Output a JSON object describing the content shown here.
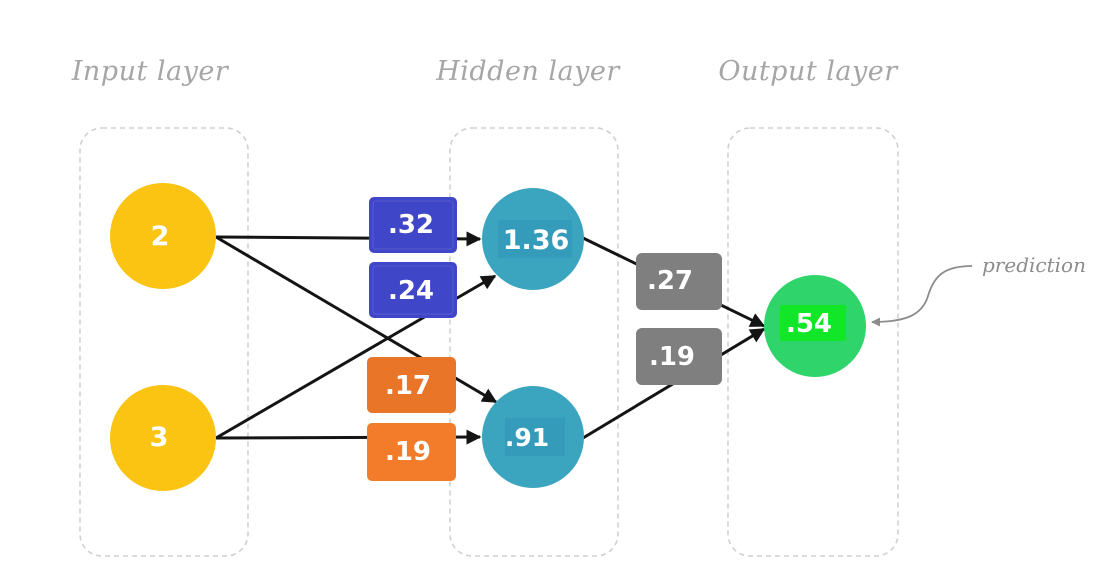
{
  "layers": {
    "input_title": "Input layer",
    "hidden_title": "Hidden layer",
    "output_title": "Output layer"
  },
  "input_nodes": [
    {
      "label": "2",
      "color": "#fbc312"
    },
    {
      "label": "3",
      "color": "#fbc312"
    }
  ],
  "hidden_nodes": [
    {
      "label": "1.36",
      "color": "#3ba5bf"
    },
    {
      "label": ".91",
      "color": "#3ba5bf"
    }
  ],
  "output_node": {
    "label": ".54",
    "color": "#2fd46a",
    "highlight": "#12e628"
  },
  "weights": {
    "input_to_hidden": [
      {
        "label": ".32",
        "from": "input-2",
        "to": "hidden-1.36",
        "color": "#4046c8"
      },
      {
        "label": ".24",
        "from": "input-3",
        "to": "hidden-1.36",
        "color": "#4046c8"
      },
      {
        "label": ".17",
        "from": "input-2",
        "to": "hidden-.91",
        "color": "#e97529"
      },
      {
        "label": ".19",
        "from": "input-3",
        "to": "hidden-.91",
        "color": "#f37c2b"
      }
    ],
    "hidden_to_output": [
      {
        "label": ".27",
        "from": "hidden-1.36",
        "to": "output",
        "color": "#7f7f7f"
      },
      {
        "label": ".19",
        "from": "hidden-.91",
        "to": "output",
        "color": "#7f7f7f"
      }
    ]
  },
  "annotation": {
    "label": "prediction",
    "color": "#8c8c8c"
  },
  "colors": {
    "edge": "#141414",
    "layer_border": "#d0d0d0",
    "title": "#a6a6a6"
  }
}
